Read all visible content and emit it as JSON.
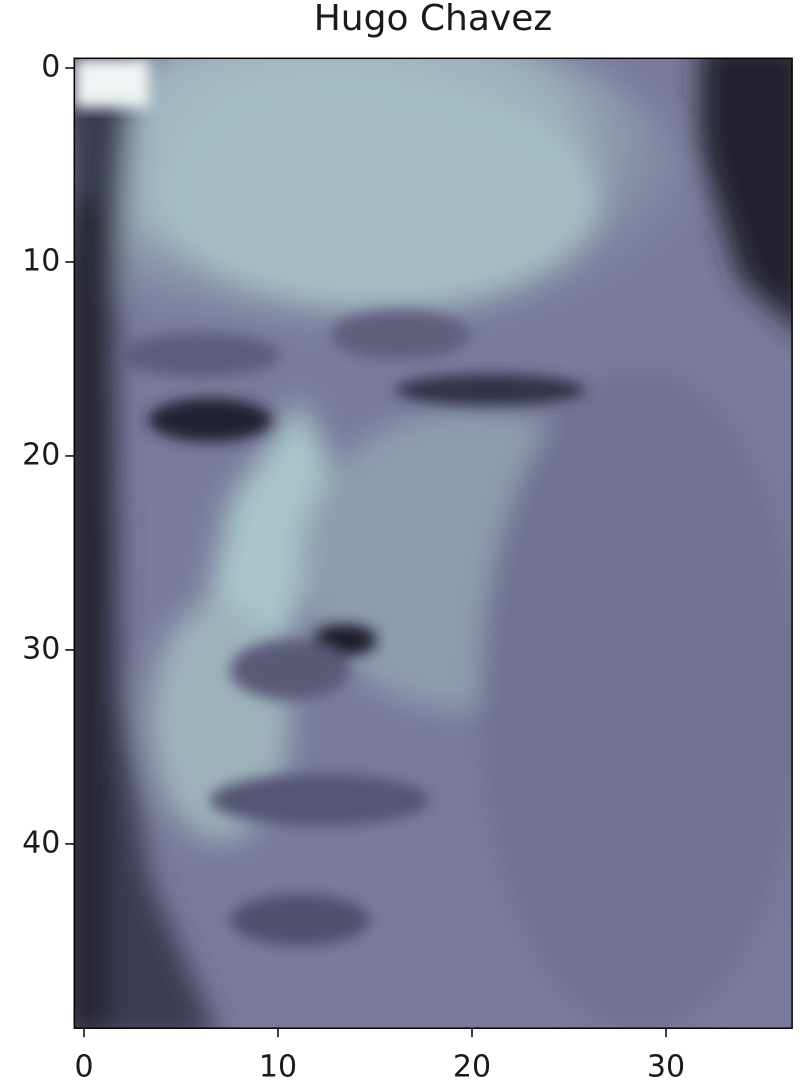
{
  "chart_data": {
    "type": "image",
    "title": "Hugo Chavez",
    "xlim": [
      -0.5,
      36.5
    ],
    "ylim": [
      49.5,
      -0.5
    ],
    "xticks": [
      0,
      10,
      20,
      30
    ],
    "yticks": [
      0,
      10,
      20,
      30,
      40
    ]
  }
}
